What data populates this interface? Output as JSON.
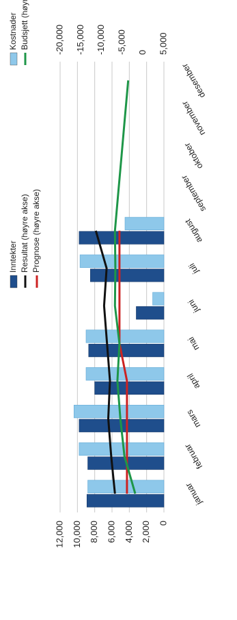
{
  "chart_data": {
    "type": "bar",
    "orientation": "rotated-90-clockwise",
    "categories": [
      "januar",
      "februar",
      "mars",
      "april",
      "mai",
      "juni",
      "juli",
      "august",
      "september",
      "oktober",
      "november",
      "desember"
    ],
    "left_axis": {
      "ticks": [
        "0",
        "2,000",
        "4,000",
        "6,000",
        "8,000",
        "10,000",
        "12,000"
      ],
      "ylim": [
        0,
        12000
      ]
    },
    "right_axis": {
      "ticks": [
        "5,000",
        "0",
        "-5,000",
        "-10,000",
        "-15,000",
        "-20,000"
      ],
      "ylim": [
        5000,
        -20000
      ]
    },
    "bar_series": [
      {
        "name": "Inntekter",
        "color": "#1f4e8c",
        "axis": "left",
        "values": [
          8900,
          8800,
          9800,
          8000,
          8700,
          3200,
          8500,
          9800,
          null,
          null,
          null,
          null
        ]
      },
      {
        "name": "Kostnader",
        "color": "#8ec8ea",
        "axis": "left",
        "values": [
          8800,
          9800,
          10400,
          9000,
          9000,
          1300,
          9700,
          4500,
          null,
          null,
          null,
          null
        ]
      }
    ],
    "line_series": [
      {
        "name": "Resultat (høyre akse)",
        "color": "#111111",
        "axis": "right",
        "values": [
          -6800,
          -7700,
          -8400,
          -8000,
          -8700,
          -9400,
          -8800,
          -11400,
          null,
          null,
          null,
          null
        ]
      },
      {
        "name": "Prognose (høyre akse)",
        "color": "#cc2222",
        "axis": "right",
        "values": [
          -3900,
          -3900,
          -3900,
          -3900,
          -5700,
          -5700,
          -5700,
          -5700,
          null,
          null,
          null,
          null
        ]
      },
      {
        "name": "Budsjett (høyre akse)",
        "color": "#1e9648",
        "axis": "right",
        "values": [
          -1900,
          -4500,
          -5500,
          -6200,
          -5700,
          -6800,
          -6700,
          -6800,
          -6000,
          -5200,
          -4400,
          -3600
        ]
      }
    ],
    "legend": [
      {
        "name": "Inntekter",
        "type": "bar",
        "color": "#1f4e8c"
      },
      {
        "name": "Kostnader",
        "type": "bar",
        "color": "#8ec8ea"
      },
      {
        "name": "Resultat (høyre akse)",
        "type": "line",
        "color": "#111111"
      },
      {
        "name": "Budsjett (høyre akse)",
        "type": "line",
        "color": "#1e9648"
      },
      {
        "name": "Prognose (høyre akse)",
        "type": "line",
        "color": "#cc2222"
      }
    ],
    "legend_position": "top",
    "grid": true
  }
}
